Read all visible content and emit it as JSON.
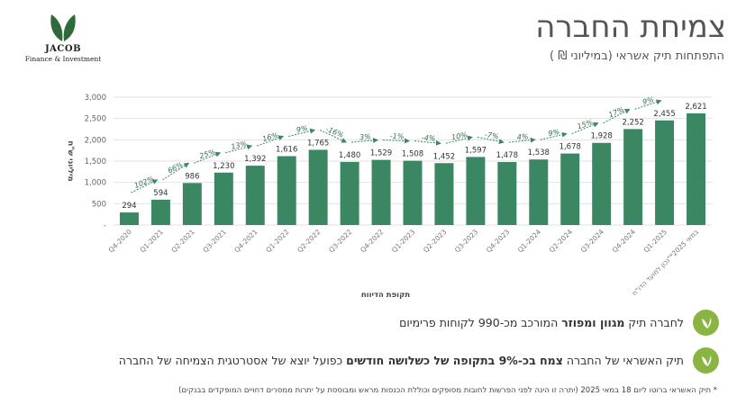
{
  "logo": {
    "name": "JACOB",
    "tagline": "Finance & Investment"
  },
  "header": {
    "title": "צמיחת החברה",
    "subtitle": "התפתחות תיק אשראי (במיליוני ₪ )"
  },
  "colors": {
    "bar": "#3b8663",
    "accent_green": "#8ab542",
    "arrow": "#3b8663",
    "logo_green": "#2f6b3a"
  },
  "chart_data": {
    "type": "bar",
    "title": "",
    "xlabel": "תקופת הדיווח",
    "ylabel": "מיליוני ש\"ח",
    "ylim": [
      0,
      3000
    ],
    "yticks": [
      "-",
      "500",
      "1,000",
      "1,500",
      "2,000",
      "2,500",
      "3,000"
    ],
    "grid": true,
    "categories": [
      "Q4-2020",
      "Q1-2021",
      "Q2-2021",
      "Q3-2021",
      "Q4-2021",
      "Q1-2022",
      "Q2-2022",
      "Q3-2022",
      "Q4-2022",
      "Q1-2023",
      "Q2-2023",
      "Q3-2023",
      "Q4-2023",
      "Q1-2024",
      "Q2-2024",
      "Q3-2024",
      "Q4-2024",
      "Q1-2025",
      "במאי 2025*\"נכון למועד הדו\"ח"
    ],
    "values": [
      294,
      594,
      986,
      1230,
      1392,
      1616,
      1765,
      1480,
      1529,
      1508,
      1452,
      1597,
      1478,
      1538,
      1678,
      1928,
      2252,
      2455,
      2621
    ],
    "value_labels": [
      "294",
      "594",
      "986",
      "1,230",
      "1,392",
      "1,616",
      "1,765",
      "1,480",
      "1,529",
      "1,508",
      "1,452",
      "1,597",
      "1,478",
      "1,538",
      "1,678",
      "1,928",
      "2,252",
      "2,455",
      "2,621"
    ],
    "growth_annotations": [
      {
        "from": 0,
        "to": 1,
        "label": "102%"
      },
      {
        "from": 1,
        "to": 2,
        "label": "66%"
      },
      {
        "from": 2,
        "to": 3,
        "label": "25%"
      },
      {
        "from": 3,
        "to": 4,
        "label": "13%"
      },
      {
        "from": 4,
        "to": 5,
        "label": "16%"
      },
      {
        "from": 5,
        "to": 6,
        "label": "9%"
      },
      {
        "from": 6,
        "to": 7,
        "label": "-16%"
      },
      {
        "from": 7,
        "to": 8,
        "label": "3%"
      },
      {
        "from": 8,
        "to": 9,
        "label": "-1%"
      },
      {
        "from": 9,
        "to": 10,
        "label": "-4%"
      },
      {
        "from": 10,
        "to": 11,
        "label": "10%"
      },
      {
        "from": 11,
        "to": 12,
        "label": "-7%"
      },
      {
        "from": 12,
        "to": 13,
        "label": "4%"
      },
      {
        "from": 13,
        "to": 14,
        "label": "9%"
      },
      {
        "from": 14,
        "to": 15,
        "label": "15%"
      },
      {
        "from": 15,
        "to": 16,
        "label": "17%"
      },
      {
        "from": 16,
        "to": 17,
        "label": "9%"
      }
    ]
  },
  "bullets": [
    {
      "pre": "לחברה תיק ",
      "bold": "מגוון ומפוזר",
      "post": " המורכב מכ-990 לקוחות פרימיום"
    },
    {
      "pre": "תיק האשראי של החברה ",
      "bold": "צמח בכ-9% בתקופה של כשלושה חודשים",
      "post": " כפועל יוצא של אסטרטגית הצמיחה של החברה"
    }
  ],
  "footnote": "* תיק האשראי ברוטו ליום 18 במאי 2025 (יתרה זו הינה לפני הפרשות לחובות מסופקים וכוללת הכנסות מראש ומבוססת על יתרות ממסרים דחויים המופקדים בבנקים)"
}
